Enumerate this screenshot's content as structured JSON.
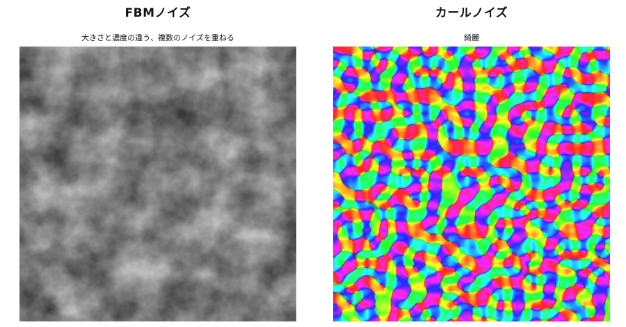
{
  "panels": [
    {
      "title": "FBMノイズ",
      "subtitle": "大きさと濃度の違う、複数のノイズを重ねる",
      "image": "fbm-grayscale-noise"
    },
    {
      "title": "カールノイズ",
      "subtitle": "綺麗",
      "image": "curl-rainbow-noise"
    }
  ]
}
